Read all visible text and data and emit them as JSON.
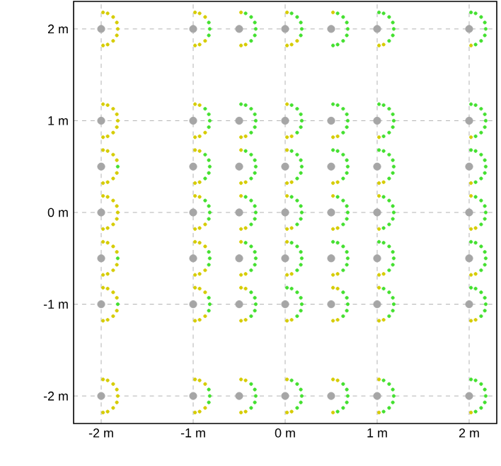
{
  "chart_data": {
    "type": "scatter",
    "grid": true,
    "xlim": [
      -2.3,
      2.3
    ],
    "ylim": [
      -2.3,
      2.3
    ],
    "xticks": [
      {
        "value": -2,
        "label": "-2 m"
      },
      {
        "value": -1,
        "label": "-1 m"
      },
      {
        "value": 0,
        "label": "0 m"
      },
      {
        "value": 1,
        "label": "1 m"
      },
      {
        "value": 2,
        "label": "2 m"
      }
    ],
    "yticks": [
      {
        "value": -2,
        "label": "-2 m"
      },
      {
        "value": -1,
        "label": "-1 m"
      },
      {
        "value": 0,
        "label": "0 m"
      },
      {
        "value": 1,
        "label": "1 m"
      },
      {
        "value": 2,
        "label": "2 m"
      }
    ],
    "series": [
      {
        "color": "#a6a6a6",
        "x": [
          -2,
          -1,
          -0.5,
          0,
          0.5,
          1,
          2,
          -2,
          -1,
          -0.5,
          0,
          0.5,
          1,
          2,
          -2,
          -1,
          -0.5,
          0,
          0.5,
          1,
          2,
          -2,
          -1,
          -0.5,
          0,
          0.5,
          1,
          2,
          -2,
          -1,
          -0.5,
          0,
          0.5,
          1,
          2,
          -2,
          -1,
          -0.5,
          0,
          0.5,
          1,
          2,
          -2,
          -1,
          -0.5,
          0,
          0.5,
          1,
          2
        ],
        "values": [
          2,
          2,
          2,
          2,
          2,
          2,
          2,
          1,
          1,
          1,
          1,
          1,
          1,
          1,
          0.5,
          0.5,
          0.5,
          0.5,
          0.5,
          0.5,
          0.5,
          0,
          0,
          0,
          0,
          0,
          0,
          0,
          -0.5,
          -0.5,
          -0.5,
          -0.5,
          -0.5,
          -0.5,
          -0.5,
          -1,
          -1,
          -1,
          -1,
          -1,
          -1,
          -1,
          -2,
          -2,
          -2,
          -2,
          -2,
          -2,
          -2
        ]
      },
      {
        "color": "#d6cc00",
        "x": [
          -1.98,
          -1.93,
          -1.87,
          -1.83,
          -1.82,
          -1.83,
          -1.87,
          -1.93,
          -1.98,
          -0.98,
          -0.93,
          -0.87,
          -0.87,
          -0.93,
          -0.98,
          -0.48,
          -0.43,
          -0.48,
          0.02,
          0.13,
          0.07,
          0.02,
          0.52,
          1.07,
          1.02,
          2.02
        ],
        "values": [
          2.18,
          2.17,
          2.13,
          2.07,
          2,
          1.93,
          1.87,
          1.83,
          1.82,
          2.18,
          2.17,
          2.13,
          1.87,
          1.83,
          1.82,
          2.18,
          1.83,
          1.82,
          2.18,
          1.87,
          1.83,
          1.82,
          2.18,
          1.83,
          1.82,
          1.82
        ]
      },
      {
        "color": "#44e030",
        "x": [
          -0.83,
          -0.82,
          -0.83,
          -0.43,
          -0.37,
          -0.33,
          -0.32,
          -0.33,
          -0.37,
          0.07,
          0.13,
          0.17,
          0.18,
          0.17,
          0.57,
          0.63,
          0.67,
          0.68,
          0.67,
          0.63,
          0.57,
          0.52,
          1.02,
          1.07,
          1.13,
          1.17,
          1.18,
          1.17,
          1.13,
          2.02,
          2.07,
          2.13,
          2.17,
          2.18,
          2.17,
          2.13,
          2.07
        ],
        "values": [
          2.07,
          2,
          1.93,
          2.17,
          2.13,
          2.07,
          2,
          1.93,
          1.87,
          2.17,
          2.13,
          2.07,
          2,
          1.93,
          2.17,
          2.13,
          2.07,
          2,
          1.93,
          1.87,
          1.83,
          1.82,
          2.18,
          2.17,
          2.13,
          2.07,
          2,
          1.93,
          1.87,
          2.18,
          2.17,
          2.13,
          2.07,
          2,
          1.93,
          1.87,
          1.83
        ]
      },
      {
        "color": "#d6cc00",
        "x": [
          -1.98,
          -1.93,
          -1.87,
          -1.83,
          -1.82,
          -1.83,
          -1.87,
          -1.93,
          -1.98,
          -0.98,
          -0.93,
          -0.87,
          -0.93,
          -0.98,
          -0.43,
          -0.48,
          0.02,
          0.07,
          0.02,
          0.57,
          0.52,
          1.02,
          2.02
        ],
        "values": [
          1.18,
          1.17,
          1.13,
          1.07,
          1,
          0.93,
          0.87,
          0.83,
          0.82,
          1.18,
          1.17,
          0.87,
          0.83,
          0.82,
          0.83,
          0.82,
          1.18,
          0.83,
          0.82,
          0.83,
          0.82,
          0.82,
          0.82
        ]
      },
      {
        "color": "#44e030",
        "x": [
          -0.87,
          -0.83,
          -0.82,
          -0.83,
          -0.48,
          -0.43,
          -0.37,
          -0.33,
          -0.32,
          -0.33,
          -0.37,
          0.07,
          0.13,
          0.17,
          0.18,
          0.17,
          0.13,
          0.52,
          0.57,
          0.63,
          0.67,
          0.68,
          0.67,
          0.63,
          1.02,
          1.07,
          1.13,
          1.17,
          1.18,
          1.17,
          1.13,
          1.07,
          2.02,
          2.07,
          2.13,
          2.17,
          2.18,
          2.17,
          2.13,
          2.07
        ],
        "values": [
          1.13,
          1.07,
          1,
          0.93,
          1.18,
          1.17,
          1.13,
          1.07,
          1,
          0.93,
          0.87,
          1.17,
          1.13,
          1.07,
          1,
          0.93,
          0.87,
          1.18,
          1.17,
          1.13,
          1.07,
          1,
          0.93,
          0.87,
          1.18,
          1.17,
          1.13,
          1.07,
          1,
          0.93,
          0.87,
          0.83,
          1.18,
          1.17,
          1.13,
          1.07,
          1,
          0.93,
          0.87,
          0.83
        ]
      },
      {
        "color": "#d6cc00",
        "x": [
          -1.98,
          -1.93,
          -1.87,
          -1.83,
          -1.83,
          -1.87,
          -1.93,
          -1.98,
          -0.98,
          -0.93,
          -0.93,
          -0.98,
          -0.48,
          -0.43,
          -0.48,
          0.02,
          0.07,
          0.02,
          0.57,
          0.52,
          1.07,
          1.02,
          2.02
        ],
        "values": [
          0.68,
          0.67,
          0.63,
          0.57,
          0.43,
          0.37,
          0.33,
          0.32,
          0.68,
          0.67,
          0.33,
          0.32,
          0.68,
          0.33,
          0.32,
          0.68,
          0.33,
          0.32,
          0.33,
          0.32,
          0.33,
          0.32,
          0.32
        ]
      },
      {
        "color": "#44e030",
        "x": [
          -1.82,
          -0.87,
          -0.83,
          -0.82,
          -0.83,
          -0.87,
          -0.43,
          -0.37,
          -0.33,
          -0.32,
          -0.33,
          -0.37,
          0.07,
          0.13,
          0.17,
          0.18,
          0.17,
          0.13,
          0.52,
          0.57,
          0.63,
          0.67,
          0.68,
          0.67,
          0.63,
          1.02,
          1.07,
          1.13,
          1.17,
          1.18,
          1.17,
          1.13,
          2.02,
          2.07,
          2.13,
          2.17,
          2.18,
          2.17,
          2.13,
          2.07
        ],
        "values": [
          0.5,
          0.63,
          0.57,
          0.5,
          0.43,
          0.37,
          0.67,
          0.63,
          0.57,
          0.5,
          0.43,
          0.37,
          0.67,
          0.63,
          0.57,
          0.5,
          0.43,
          0.37,
          0.68,
          0.67,
          0.63,
          0.57,
          0.5,
          0.43,
          0.37,
          0.68,
          0.67,
          0.63,
          0.57,
          0.5,
          0.43,
          0.37,
          0.68,
          0.67,
          0.63,
          0.57,
          0.5,
          0.43,
          0.37,
          0.33
        ]
      },
      {
        "color": "#d6cc00",
        "x": [
          -1.98,
          -1.93,
          -1.87,
          -1.83,
          -1.82,
          -1.83,
          -1.87,
          -1.93,
          -1.98,
          -0.98,
          -0.93,
          -0.87,
          -0.93,
          -0.98,
          -0.48,
          -0.43,
          -0.48,
          0.02,
          0.07,
          0.02,
          0.52,
          0.57,
          0.52,
          1.02,
          1.02,
          2.02,
          2.07,
          2.02
        ],
        "values": [
          0.18,
          0.17,
          0.13,
          0.07,
          0,
          -0.07,
          -0.13,
          -0.17,
          -0.18,
          0.18,
          0.17,
          -0.13,
          -0.17,
          -0.18,
          0.18,
          -0.17,
          -0.18,
          0.18,
          -0.17,
          -0.18,
          0.18,
          -0.17,
          -0.18,
          0.18,
          -0.18,
          0.18,
          -0.17,
          -0.18
        ]
      },
      {
        "color": "#44e030",
        "x": [
          -0.87,
          -0.83,
          -0.82,
          -0.83,
          -0.43,
          -0.37,
          -0.33,
          -0.32,
          -0.33,
          -0.37,
          0.07,
          0.13,
          0.17,
          0.18,
          0.17,
          0.13,
          0.57,
          0.63,
          0.67,
          0.68,
          0.67,
          0.63,
          1.07,
          1.13,
          1.17,
          1.18,
          1.17,
          1.13,
          1.07,
          2.07,
          2.13,
          2.17,
          2.18,
          2.17,
          2.13
        ],
        "values": [
          0.13,
          0.07,
          0,
          -0.07,
          0.17,
          0.13,
          0.07,
          0,
          -0.07,
          -0.13,
          0.17,
          0.13,
          0.07,
          0,
          -0.07,
          -0.13,
          0.17,
          0.13,
          0.07,
          0,
          -0.07,
          -0.13,
          0.17,
          0.13,
          0.07,
          0,
          -0.07,
          -0.13,
          -0.17,
          0.17,
          0.13,
          0.07,
          0,
          -0.07,
          -0.13
        ]
      },
      {
        "color": "#d6cc00",
        "x": [
          -1.98,
          -1.93,
          -1.87,
          -1.83,
          -1.83,
          -1.87,
          -1.93,
          -1.98,
          -0.98,
          -0.93,
          -0.87,
          -0.87,
          -0.93,
          -0.98,
          -0.48,
          -0.43,
          -0.48,
          0.02,
          0.07,
          0.02,
          0.57,
          0.52,
          1.07,
          1.02,
          2.07,
          2.02
        ],
        "values": [
          -0.32,
          -0.33,
          -0.37,
          -0.43,
          -0.57,
          -0.63,
          -0.67,
          -0.68,
          -0.32,
          -0.33,
          -0.37,
          -0.63,
          -0.67,
          -0.68,
          -0.32,
          -0.67,
          -0.68,
          -0.32,
          -0.67,
          -0.68,
          -0.67,
          -0.68,
          -0.67,
          -0.68,
          -0.67,
          -0.68
        ]
      },
      {
        "color": "#44e030",
        "x": [
          -1.82,
          -0.83,
          -0.82,
          -0.83,
          -0.43,
          -0.37,
          -0.33,
          -0.32,
          -0.33,
          -0.37,
          0.07,
          0.13,
          0.17,
          0.18,
          0.17,
          0.13,
          0.52,
          0.57,
          0.63,
          0.67,
          0.68,
          0.67,
          0.63,
          1.02,
          1.07,
          1.13,
          1.17,
          1.18,
          1.17,
          1.13,
          2.02,
          2.07,
          2.13,
          2.17,
          2.18,
          2.17,
          2.13
        ],
        "values": [
          -0.5,
          -0.43,
          -0.5,
          -0.57,
          -0.33,
          -0.37,
          -0.43,
          -0.5,
          -0.57,
          -0.63,
          -0.33,
          -0.37,
          -0.43,
          -0.5,
          -0.57,
          -0.63,
          -0.32,
          -0.33,
          -0.37,
          -0.43,
          -0.5,
          -0.57,
          -0.63,
          -0.32,
          -0.33,
          -0.37,
          -0.43,
          -0.5,
          -0.57,
          -0.63,
          -0.32,
          -0.33,
          -0.37,
          -0.43,
          -0.5,
          -0.57,
          -0.63
        ]
      },
      {
        "color": "#d6cc00",
        "x": [
          -1.98,
          -1.93,
          -1.87,
          -1.83,
          -1.83,
          -1.87,
          -1.93,
          -1.98,
          -0.98,
          -0.93,
          -0.87,
          -0.87,
          -0.93,
          -0.98,
          -0.48,
          -0.43,
          -0.43,
          -0.48,
          0.07,
          0.02,
          0.52,
          0.57,
          0.57,
          0.52,
          1.02,
          1.07,
          1.02,
          2.07,
          2.02
        ],
        "values": [
          -0.82,
          -0.83,
          -0.87,
          -0.93,
          -1.07,
          -1.13,
          -1.17,
          -1.18,
          -0.82,
          -0.83,
          -0.87,
          -1.13,
          -1.17,
          -1.18,
          -0.82,
          -0.83,
          -1.17,
          -1.18,
          -1.17,
          -1.18,
          -0.82,
          -0.83,
          -1.17,
          -1.18,
          -0.82,
          -1.17,
          -1.18,
          -1.17,
          -1.18
        ]
      },
      {
        "color": "#44e030",
        "x": [
          -1.82,
          -0.83,
          -0.82,
          -0.83,
          -0.37,
          -0.33,
          -0.32,
          -0.33,
          -0.37,
          0.02,
          0.07,
          0.13,
          0.17,
          0.18,
          0.17,
          0.13,
          0.63,
          0.67,
          0.68,
          0.67,
          0.63,
          1.07,
          1.13,
          1.17,
          1.18,
          1.17,
          1.13,
          2.02,
          2.07,
          2.13,
          2.17,
          2.18,
          2.17,
          2.13
        ],
        "values": [
          -1,
          -0.93,
          -1,
          -1.07,
          -0.87,
          -0.93,
          -1,
          -1.07,
          -1.13,
          -0.82,
          -0.83,
          -0.87,
          -0.93,
          -1,
          -1.07,
          -1.13,
          -0.87,
          -0.93,
          -1,
          -1.07,
          -1.13,
          -0.83,
          -0.87,
          -0.93,
          -1,
          -1.07,
          -1.13,
          -0.82,
          -0.83,
          -0.87,
          -0.93,
          -1,
          -1.07,
          -1.13
        ]
      },
      {
        "color": "#d6cc00",
        "x": [
          -1.98,
          -1.93,
          -1.87,
          -1.83,
          -1.82,
          -1.83,
          -1.87,
          -1.93,
          -1.98,
          -0.98,
          -0.93,
          -0.87,
          -0.87,
          -0.93,
          -0.98,
          -0.48,
          -0.43,
          -0.43,
          -0.48,
          0.02,
          0.07,
          0.02,
          0.52,
          0.57,
          0.52,
          1.02,
          1.02,
          2.02
        ],
        "values": [
          -1.82,
          -1.83,
          -1.87,
          -1.93,
          -2,
          -2.07,
          -2.13,
          -2.17,
          -2.18,
          -1.82,
          -1.83,
          -1.87,
          -2.13,
          -2.17,
          -2.18,
          -1.82,
          -1.83,
          -2.17,
          -2.18,
          -1.82,
          -2.17,
          -2.18,
          -1.82,
          -1.83,
          -2.18,
          -1.82,
          -2.18,
          -2.18
        ]
      },
      {
        "color": "#44e030",
        "x": [
          -0.83,
          -0.82,
          -0.83,
          -0.37,
          -0.33,
          -0.32,
          -0.33,
          -0.37,
          0.07,
          0.13,
          0.17,
          0.18,
          0.17,
          0.13,
          0.63,
          0.67,
          0.68,
          0.67,
          0.63,
          0.57,
          1.07,
          1.13,
          1.17,
          1.18,
          1.17,
          1.13,
          1.07,
          2.02,
          2.07,
          2.13,
          2.17,
          2.18,
          2.17,
          2.13,
          2.07
        ],
        "values": [
          -1.93,
          -2,
          -2.07,
          -1.87,
          -1.93,
          -2,
          -2.07,
          -2.13,
          -1.83,
          -1.87,
          -1.93,
          -2,
          -2.07,
          -2.13,
          -1.87,
          -1.93,
          -2,
          -2.07,
          -2.13,
          -2.17,
          -1.83,
          -1.87,
          -1.93,
          -2,
          -2.07,
          -2.13,
          -2.17,
          -1.82,
          -1.83,
          -1.87,
          -1.93,
          -2,
          -2.07,
          -2.13,
          -2.17
        ]
      }
    ]
  }
}
